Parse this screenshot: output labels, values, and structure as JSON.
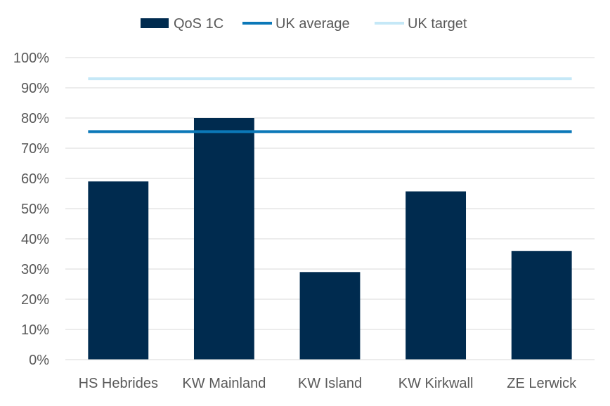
{
  "chart_data": {
    "type": "bar",
    "categories": [
      "HS Hebrides",
      "KW Mainland",
      "KW Island",
      "KW Kirkwall",
      "ZE Lerwick"
    ],
    "series": [
      {
        "name": "QoS 1C",
        "type": "bar",
        "values": [
          59,
          80,
          29,
          55.7,
          36
        ],
        "color": "#002b4f"
      }
    ],
    "reference_lines": [
      {
        "name": "UK average",
        "value": 75.5,
        "color": "#0b78b8"
      },
      {
        "name": "UK target",
        "value": 93,
        "color": "#c5e8f7"
      }
    ],
    "y_ticks": [
      "0%",
      "10%",
      "20%",
      "30%",
      "40%",
      "50%",
      "60%",
      "70%",
      "80%",
      "90%",
      "100%"
    ],
    "ylim": [
      0,
      100
    ],
    "y_unit": "%",
    "grid": true,
    "legend_position": "top"
  }
}
